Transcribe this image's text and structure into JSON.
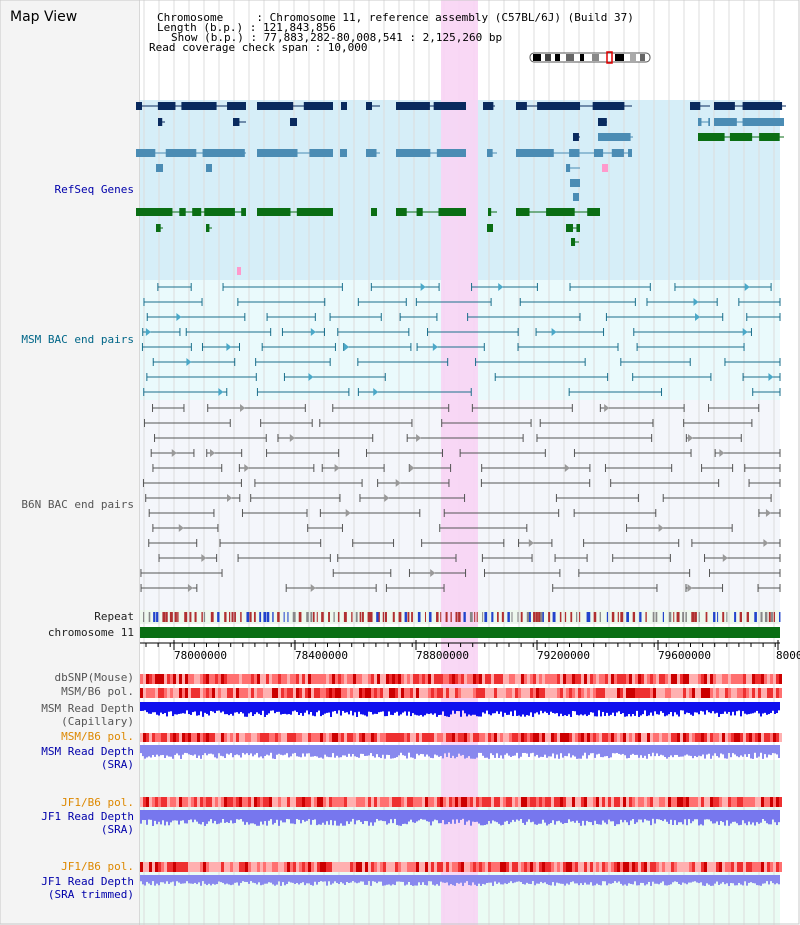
{
  "app": {
    "title": "Map View"
  },
  "header": {
    "chromosome_line": "Chromosome     : Chromosome 11, reference assembly (C57BL/6J) (Build 37)",
    "length_line": "Length (b.p.) : 121,843,856",
    "show_line": "Show (b.p.) : 77,883,282-80,008,541 : 2,125,260 bp",
    "coverage_line": "Read coverage check span : 10,000"
  },
  "tracks": {
    "refseq_genes": "RefSeq Genes",
    "msm_bac": "MSM BAC end pairs",
    "b6n_bac": "B6N BAC end pairs",
    "repeat": "Repeat",
    "chromosome": "chromosome 11",
    "dbsnp": "dbSNP(Mouse)",
    "msm_b6_pol_1": "MSM/B6 pol.",
    "msm_read_depth_cap_1": "MSM Read Depth",
    "msm_read_depth_cap_2": "(Capillary)",
    "msm_b6_pol_2": "MSM/B6 pol.",
    "msm_read_depth_sra_1": "MSM Read Depth",
    "msm_read_depth_sra_2": "(SRA)",
    "jf1_b6_pol_1": "JF1/B6 pol.",
    "jf1_read_depth_sra_1": "JF1 Read Depth",
    "jf1_read_depth_sra_2": "(SRA)",
    "jf1_b6_pol_2": "JF1/B6 pol.",
    "jf1_read_depth_trim_1": "JF1 Read Depth",
    "jf1_read_depth_trim_2": "(SRA trimmed)"
  },
  "axis": {
    "ticks": [
      "78000000",
      "78400000",
      "78800000",
      "79200000",
      "79600000",
      "8000"
    ]
  },
  "colors": {
    "label_black": "#222222",
    "label_blue": "#0000aa",
    "label_teal": "#006688",
    "label_orange": "#dd8800",
    "label_gray": "#555555",
    "highlight": "#f8d4f4",
    "refseq_bg": "#d6eef8",
    "msm_bac_bg": "#eafafc",
    "b6n_bac_bg": "#f4f6fb",
    "navy": "#0a2a5e",
    "steel": "#4b8cb4",
    "green": "#0a6e14",
    "chrom_green": "#0a6e14"
  }
}
